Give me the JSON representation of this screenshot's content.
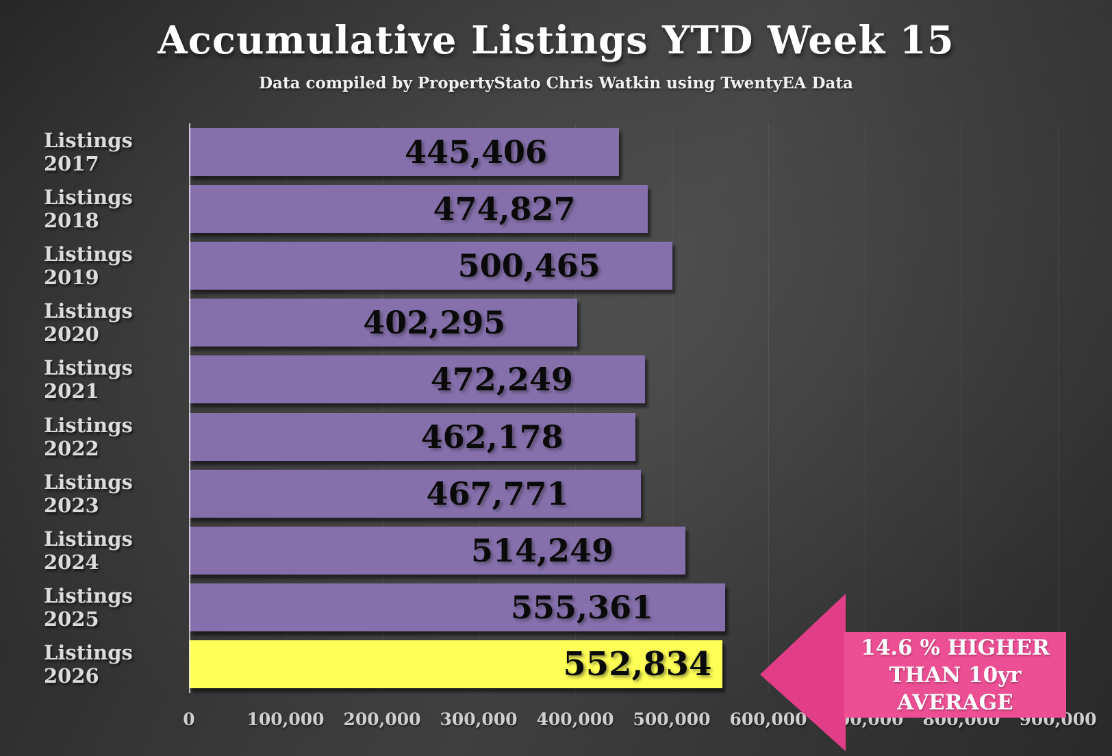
{
  "header": {
    "title": "Accumulative Listings YTD Week 15",
    "subtitle": "Data compiled by PropertyStato Chris Watkin using TwentyEA Data"
  },
  "chart_data": {
    "type": "bar",
    "orientation": "horizontal",
    "title": "Accumulative Listings YTD Week 15",
    "categories": [
      "Listings 2017",
      "Listings 2018",
      "Listings 2019",
      "Listings 2020",
      "Listings 2021",
      "Listings 2022",
      "Listings 2023",
      "Listings 2024",
      "Listings 2025",
      "Listings 2026"
    ],
    "values": [
      445406,
      474827,
      500465,
      402295,
      472249,
      462178,
      467771,
      514249,
      555361,
      552834
    ],
    "value_labels": [
      "445,406",
      "474,827",
      "500,465",
      "402,295",
      "472,249",
      "462,178",
      "467,771",
      "514,249",
      "555,361",
      "552,834"
    ],
    "xlim": [
      0,
      900000
    ],
    "x_ticks": [
      "0",
      "100,000",
      "200,000",
      "300,000",
      "400,000",
      "500,000",
      "600,000",
      "700,000",
      "800,000",
      "900,000"
    ],
    "grid": true,
    "legend": "none",
    "highlight_index": 9,
    "annotation": "14.6 % HIGHER THAN 10yr AVERAGE (points at Listings 2026 bar)"
  },
  "annotation": {
    "line1": "14.6 % HIGHER",
    "line2": "THAN 10yr",
    "line3": "AVERAGE"
  },
  "colors": {
    "bar": "#8570ac",
    "bar-highlight": "#ffff55",
    "pink-head": "#e23e87",
    "pink-box": "#ec4f93",
    "cat-text": "#dcdcdc",
    "axis-text": "#cfcfcf",
    "value-text": "#0a0a0a",
    "title-text": "#ffffff"
  }
}
